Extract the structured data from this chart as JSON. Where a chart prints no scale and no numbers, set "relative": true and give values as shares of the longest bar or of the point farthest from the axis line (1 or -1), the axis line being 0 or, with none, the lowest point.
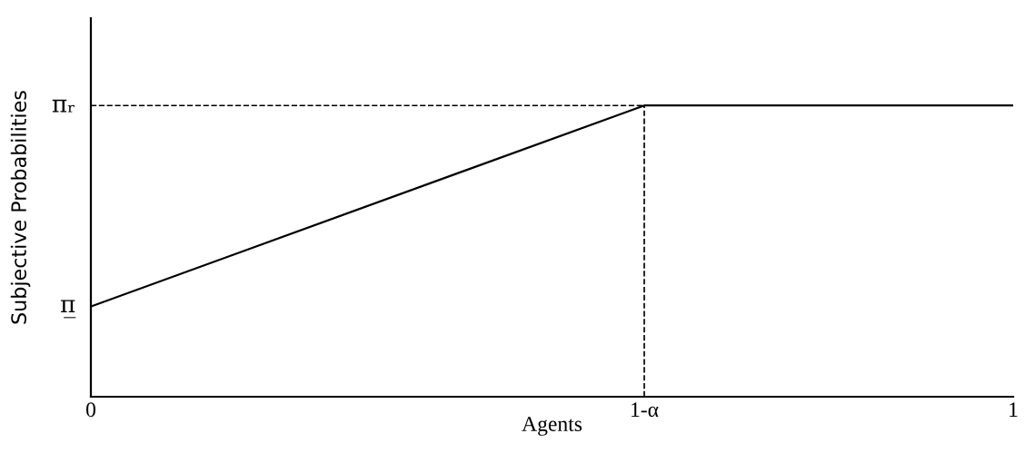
{
  "chart_data": {
    "type": "line",
    "relative": true,
    "xlabel": "Agents",
    "ylabel": "Subjective Probabilities",
    "xlim": [
      0,
      1
    ],
    "xticks": [
      0,
      {
        "value": 0.6,
        "label": "1-α"
      },
      1
    ],
    "series": [
      {
        "color": "#000000",
        "x": [
          0,
          0.6,
          1
        ],
        "values": [
          0.31,
          1,
          1
        ]
      },
      {
        "color": "#000000",
        "x": [
          0,
          0.6
        ],
        "values": [
          1,
          1
        ],
        "line_style": "dashed"
      },
      {
        "color": "#000000",
        "x": [
          0.6,
          0.6
        ],
        "values": [
          0,
          1
        ],
        "line_style": "dashed"
      }
    ],
    "annotations": [
      {
        "text": "πᵣ",
        "x": 0,
        "y": 1
      },
      {
        "text": "π̲",
        "x": 0,
        "y": 0.31
      }
    ],
    "grid": false,
    "legend": false,
    "marker": "none",
    "line_style": "solid"
  }
}
